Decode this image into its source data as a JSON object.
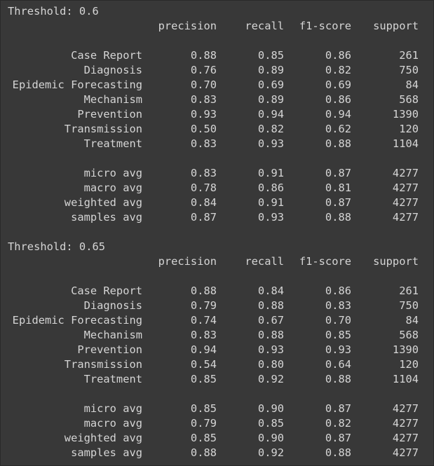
{
  "reports": [
    {
      "title": "Threshold: 0.6",
      "headers": [
        "precision",
        "recall",
        "f1-score",
        "support"
      ],
      "rows": [
        {
          "label": "Case Report",
          "precision": "0.88",
          "recall": "0.85",
          "f1": "0.86",
          "support": "261"
        },
        {
          "label": "Diagnosis",
          "precision": "0.76",
          "recall": "0.89",
          "f1": "0.82",
          "support": "750"
        },
        {
          "label": "Epidemic Forecasting",
          "precision": "0.70",
          "recall": "0.69",
          "f1": "0.69",
          "support": "84"
        },
        {
          "label": "Mechanism",
          "precision": "0.83",
          "recall": "0.89",
          "f1": "0.86",
          "support": "568"
        },
        {
          "label": "Prevention",
          "precision": "0.93",
          "recall": "0.94",
          "f1": "0.94",
          "support": "1390"
        },
        {
          "label": "Transmission",
          "precision": "0.50",
          "recall": "0.82",
          "f1": "0.62",
          "support": "120"
        },
        {
          "label": "Treatment",
          "precision": "0.83",
          "recall": "0.93",
          "f1": "0.88",
          "support": "1104"
        }
      ],
      "averages": [
        {
          "label": "micro avg",
          "precision": "0.83",
          "recall": "0.91",
          "f1": "0.87",
          "support": "4277"
        },
        {
          "label": "macro avg",
          "precision": "0.78",
          "recall": "0.86",
          "f1": "0.81",
          "support": "4277"
        },
        {
          "label": "weighted avg",
          "precision": "0.84",
          "recall": "0.91",
          "f1": "0.87",
          "support": "4277"
        },
        {
          "label": "samples avg",
          "precision": "0.87",
          "recall": "0.93",
          "f1": "0.88",
          "support": "4277"
        }
      ]
    },
    {
      "title": "Threshold: 0.65",
      "headers": [
        "precision",
        "recall",
        "f1-score",
        "support"
      ],
      "rows": [
        {
          "label": "Case Report",
          "precision": "0.88",
          "recall": "0.84",
          "f1": "0.86",
          "support": "261"
        },
        {
          "label": "Diagnosis",
          "precision": "0.79",
          "recall": "0.88",
          "f1": "0.83",
          "support": "750"
        },
        {
          "label": "Epidemic Forecasting",
          "precision": "0.74",
          "recall": "0.67",
          "f1": "0.70",
          "support": "84"
        },
        {
          "label": "Mechanism",
          "precision": "0.83",
          "recall": "0.88",
          "f1": "0.85",
          "support": "568"
        },
        {
          "label": "Prevention",
          "precision": "0.94",
          "recall": "0.93",
          "f1": "0.93",
          "support": "1390"
        },
        {
          "label": "Transmission",
          "precision": "0.54",
          "recall": "0.80",
          "f1": "0.64",
          "support": "120"
        },
        {
          "label": "Treatment",
          "precision": "0.85",
          "recall": "0.92",
          "f1": "0.88",
          "support": "1104"
        }
      ],
      "averages": [
        {
          "label": "micro avg",
          "precision": "0.85",
          "recall": "0.90",
          "f1": "0.87",
          "support": "4277"
        },
        {
          "label": "macro avg",
          "precision": "0.79",
          "recall": "0.85",
          "f1": "0.82",
          "support": "4277"
        },
        {
          "label": "weighted avg",
          "precision": "0.85",
          "recall": "0.90",
          "f1": "0.87",
          "support": "4277"
        },
        {
          "label": "samples avg",
          "precision": "0.88",
          "recall": "0.92",
          "f1": "0.88",
          "support": "4277"
        }
      ]
    }
  ]
}
